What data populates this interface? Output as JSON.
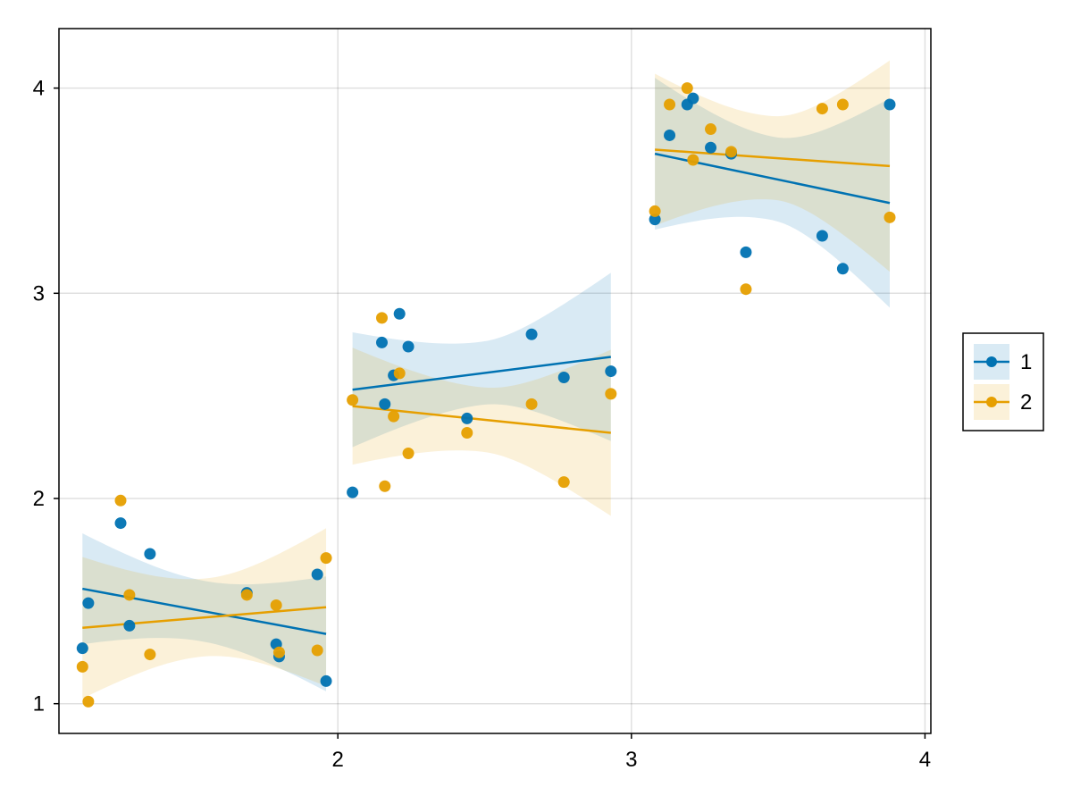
{
  "chart_data": {
    "type": "scatter",
    "title": "",
    "xlabel": "",
    "ylabel": "",
    "xlim": [
      1.05,
      4.02
    ],
    "ylim": [
      0.855,
      4.29
    ],
    "xticks": [
      2,
      3,
      4
    ],
    "yticks": [
      1,
      2,
      3,
      4
    ],
    "grid": true,
    "legend_position": "right",
    "series": [
      {
        "name": "1",
        "color": "#0072b2",
        "points": [
          [
            1.13,
            1.27
          ],
          [
            1.15,
            1.49
          ],
          [
            1.26,
            1.88
          ],
          [
            1.29,
            1.38
          ],
          [
            1.36,
            1.73
          ],
          [
            1.69,
            1.54
          ],
          [
            1.79,
            1.29
          ],
          [
            1.8,
            1.23
          ],
          [
            1.93,
            1.63
          ],
          [
            1.96,
            1.11
          ],
          [
            2.05,
            2.03
          ],
          [
            2.15,
            2.76
          ],
          [
            2.16,
            2.46
          ],
          [
            2.19,
            2.6
          ],
          [
            2.21,
            2.9
          ],
          [
            2.24,
            2.74
          ],
          [
            2.44,
            2.39
          ],
          [
            2.66,
            2.8
          ],
          [
            2.77,
            2.59
          ],
          [
            2.93,
            2.62
          ],
          [
            3.08,
            3.36
          ],
          [
            3.13,
            3.77
          ],
          [
            3.19,
            3.92
          ],
          [
            3.21,
            3.95
          ],
          [
            3.27,
            3.71
          ],
          [
            3.34,
            3.68
          ],
          [
            3.39,
            3.2
          ],
          [
            3.65,
            3.28
          ],
          [
            3.72,
            3.12
          ],
          [
            3.88,
            3.92
          ]
        ],
        "fits": [
          {
            "x": [
              1.13,
              1.96
            ],
            "y": [
              1.56,
              1.34
            ],
            "band_lower": [
              1.29,
              1.06
            ],
            "band_upper": [
              1.83,
              1.62
            ]
          },
          {
            "x": [
              2.05,
              2.93
            ],
            "y": [
              2.53,
              2.69
            ],
            "band_lower": [
              2.25,
              2.28
            ],
            "band_upper": [
              2.81,
              3.1
            ]
          },
          {
            "x": [
              3.08,
              3.88
            ],
            "y": [
              3.68,
              3.44
            ],
            "band_lower": [
              3.31,
              2.93
            ],
            "band_upper": [
              4.05,
              3.95
            ]
          }
        ]
      },
      {
        "name": "2",
        "color": "#e69f00",
        "points": [
          [
            1.13,
            1.18
          ],
          [
            1.15,
            1.01
          ],
          [
            1.26,
            1.99
          ],
          [
            1.29,
            1.53
          ],
          [
            1.36,
            1.24
          ],
          [
            1.69,
            1.53
          ],
          [
            1.79,
            1.48
          ],
          [
            1.8,
            1.25
          ],
          [
            1.93,
            1.26
          ],
          [
            1.96,
            1.71
          ],
          [
            2.05,
            2.48
          ],
          [
            2.15,
            2.88
          ],
          [
            2.16,
            2.06
          ],
          [
            2.19,
            2.4
          ],
          [
            2.21,
            2.61
          ],
          [
            2.24,
            2.22
          ],
          [
            2.44,
            2.32
          ],
          [
            2.66,
            2.46
          ],
          [
            2.77,
            2.08
          ],
          [
            2.93,
            2.51
          ],
          [
            3.08,
            3.4
          ],
          [
            3.13,
            3.92
          ],
          [
            3.19,
            4.0
          ],
          [
            3.21,
            3.65
          ],
          [
            3.27,
            3.8
          ],
          [
            3.34,
            3.69
          ],
          [
            3.39,
            3.02
          ],
          [
            3.65,
            3.9
          ],
          [
            3.72,
            3.92
          ],
          [
            3.88,
            3.37
          ]
        ],
        "fits": [
          {
            "x": [
              1.13,
              1.96
            ],
            "y": [
              1.37,
              1.47
            ],
            "band_lower": [
              1.03,
              1.08
            ],
            "band_upper": [
              1.72,
              1.85
            ]
          },
          {
            "x": [
              2.05,
              2.93
            ],
            "y": [
              2.45,
              2.32
            ],
            "band_lower": [
              2.16,
              1.92
            ],
            "band_upper": [
              2.73,
              2.73
            ]
          },
          {
            "x": [
              3.08,
              3.88
            ],
            "y": [
              3.7,
              3.62
            ],
            "band_lower": [
              3.33,
              3.1
            ],
            "band_upper": [
              4.07,
              4.13
            ]
          }
        ]
      }
    ]
  }
}
